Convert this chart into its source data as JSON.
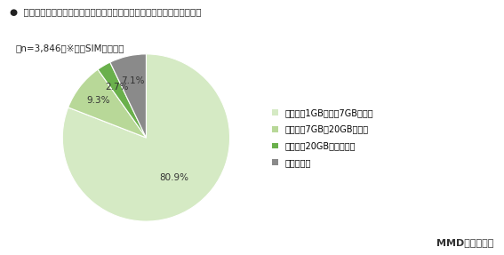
{
  "title_line1": "●  現在契約している通信会社のスマートフォンの月間のデータ容量プラン",
  "title_line2": "（n=3,846）※格安SIMユーザー",
  "values": [
    80.9,
    9.3,
    2.7,
    7.1
  ],
  "colors": [
    "#d5eac4",
    "#b8d898",
    "#6ab04c",
    "#8a8a8a"
  ],
  "pct_labels": [
    "80.9%",
    "9.3%",
    "2.7%",
    "7.1%"
  ],
  "legend_labels": [
    "小容量（1GB以下〜7GB未満）",
    "中容量（7GB〜20GB未満）",
    "大容量（20GB〜無制限）",
    "分からない"
  ],
  "source_text": "MMD研究所調べ",
  "background_color": "#ffffff"
}
